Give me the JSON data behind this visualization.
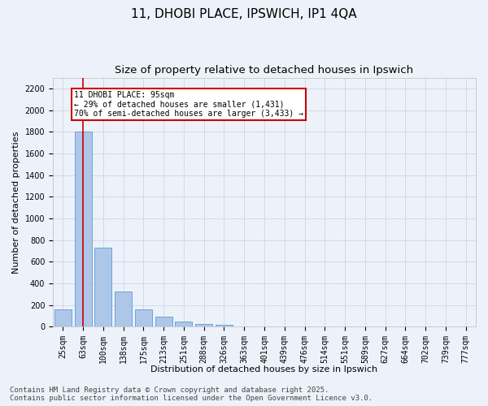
{
  "title_line1": "11, DHOBI PLACE, IPSWICH, IP1 4QA",
  "title_line2": "Size of property relative to detached houses in Ipswich",
  "xlabel": "Distribution of detached houses by size in Ipswich",
  "ylabel": "Number of detached properties",
  "categories": [
    "25sqm",
    "63sqm",
    "100sqm",
    "138sqm",
    "175sqm",
    "213sqm",
    "251sqm",
    "288sqm",
    "326sqm",
    "363sqm",
    "401sqm",
    "439sqm",
    "476sqm",
    "514sqm",
    "551sqm",
    "589sqm",
    "627sqm",
    "664sqm",
    "702sqm",
    "739sqm",
    "777sqm"
  ],
  "values": [
    160,
    1800,
    730,
    325,
    160,
    90,
    50,
    25,
    20,
    0,
    0,
    0,
    0,
    0,
    0,
    0,
    0,
    0,
    0,
    0,
    0
  ],
  "bar_color": "#aec6e8",
  "bar_edge_color": "#5b9bd5",
  "grid_color": "#d0daea",
  "background_color": "#edf2fa",
  "vline_color": "#cc0000",
  "vline_index": 1.5,
  "annotation_text": "11 DHOBI PLACE: 95sqm\n← 29% of detached houses are smaller (1,431)\n70% of semi-detached houses are larger (3,433) →",
  "annotation_box_color": "#cc0000",
  "ylim": [
    0,
    2300
  ],
  "yticks": [
    0,
    200,
    400,
    600,
    800,
    1000,
    1200,
    1400,
    1600,
    1800,
    2000,
    2200
  ],
  "footer_line1": "Contains HM Land Registry data © Crown copyright and database right 2025.",
  "footer_line2": "Contains public sector information licensed under the Open Government Licence v3.0.",
  "title_fontsize": 11,
  "subtitle_fontsize": 9.5,
  "label_fontsize": 8,
  "tick_fontsize": 7,
  "annotation_fontsize": 7,
  "footer_fontsize": 6.5
}
